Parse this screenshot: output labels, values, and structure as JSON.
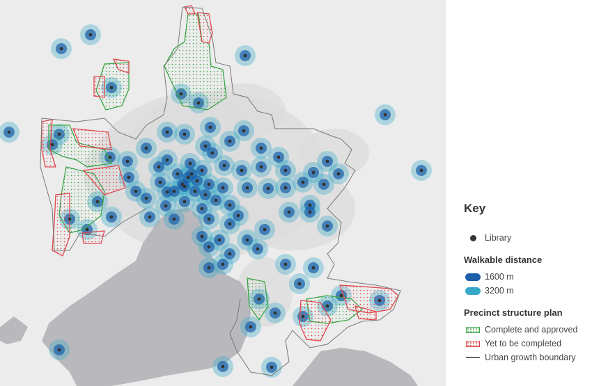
{
  "legend": {
    "key_title": "Key",
    "library_label": "Library",
    "walkable_title": "Walkable distance",
    "d1600_label": "1600 m",
    "d3200_label": "3200 m",
    "precinct_title": "Precinct structure plan",
    "complete_label": "Complete and approved",
    "yet_label": "Yet to be completed",
    "ugb_label": "Urban growth boundary"
  },
  "colors": {
    "land": "#ececec",
    "urban": "#dcdcdc",
    "water": "#b9b9bd",
    "walk_1600": "#1a5ea8",
    "walk_3200": "#36a9c9",
    "complete": "#3aa547",
    "yet": "#e0474c",
    "library": "#333333",
    "ugb": "#777777"
  },
  "map_data": {
    "libraries": [
      [
        130,
        50
      ],
      [
        88,
        70
      ],
      [
        352,
        80
      ],
      [
        160,
        126
      ],
      [
        553,
        165
      ],
      [
        605,
        245
      ],
      [
        13,
        190
      ],
      [
        85,
        193
      ],
      [
        75,
        208
      ],
      [
        158,
        226
      ],
      [
        183,
        232
      ],
      [
        210,
        213
      ],
      [
        240,
        190
      ],
      [
        265,
        193
      ],
      [
        302,
        183
      ],
      [
        330,
        203
      ],
      [
        350,
        188
      ],
      [
        375,
        213
      ],
      [
        400,
        226
      ],
      [
        185,
        255
      ],
      [
        228,
        240
      ],
      [
        255,
        250
      ],
      [
        273,
        235
      ],
      [
        295,
        210
      ],
      [
        322,
        238
      ],
      [
        347,
        245
      ],
      [
        375,
        240
      ],
      [
        410,
        245
      ],
      [
        450,
        248
      ],
      [
        470,
        232
      ],
      [
        486,
        250
      ],
      [
        210,
        285
      ],
      [
        240,
        276
      ],
      [
        265,
        268
      ],
      [
        280,
        275
      ],
      [
        290,
        300
      ],
      [
        310,
        288
      ],
      [
        330,
        295
      ],
      [
        355,
        270
      ],
      [
        385,
        271
      ],
      [
        410,
        270
      ],
      [
        435,
        262
      ],
      [
        465,
        265
      ],
      [
        125,
        330
      ],
      [
        100,
        315
      ],
      [
        160,
        312
      ],
      [
        215,
        312
      ],
      [
        238,
        296
      ],
      [
        250,
        315
      ],
      [
        330,
        322
      ],
      [
        355,
        345
      ],
      [
        380,
        330
      ],
      [
        415,
        305
      ],
      [
        445,
        305
      ],
      [
        470,
        325
      ],
      [
        445,
        295
      ],
      [
        300,
        315
      ],
      [
        290,
        340
      ],
      [
        315,
        345
      ],
      [
        330,
        365
      ],
      [
        370,
        358
      ],
      [
        300,
        355
      ],
      [
        320,
        380
      ],
      [
        410,
        380
      ],
      [
        450,
        385
      ],
      [
        430,
        408
      ],
      [
        435,
        455
      ],
      [
        470,
        440
      ],
      [
        395,
        450
      ],
      [
        372,
        430
      ],
      [
        360,
        470
      ],
      [
        260,
        135
      ],
      [
        285,
        148
      ],
      [
        240,
        230
      ],
      [
        270,
        255
      ],
      [
        262,
        265
      ],
      [
        275,
        250
      ],
      [
        283,
        260
      ],
      [
        290,
        245
      ],
      [
        300,
        265
      ],
      [
        295,
        280
      ],
      [
        250,
        275
      ],
      [
        230,
        262
      ],
      [
        140,
        290
      ],
      [
        545,
        432
      ],
      [
        490,
        425
      ],
      [
        85,
        503
      ],
      [
        320,
        527
      ],
      [
        390,
        528
      ],
      [
        305,
        220
      ],
      [
        342,
        310
      ],
      [
        265,
        290
      ],
      [
        320,
        270
      ],
      [
        195,
        275
      ],
      [
        300,
        385
      ]
    ],
    "complete_plans": [
      "M270,20 L285,20 L290,60 L300,62 L303,95 L320,100 L325,140 L298,158 L262,152 L245,115 L236,95 L250,70 L265,60 Z",
      "M150,92 L185,90 L185,128 L175,152 L152,158 L138,130 Z",
      "M70,180 L100,180 L110,205 L150,215 L160,235 L125,240 L110,230 L90,225 L70,215 Z",
      "M95,240 L135,250 L150,275 L145,310 L120,330 L100,335 L85,310 L88,280 Z",
      "M440,430 L470,425 L505,430 L520,445 L500,460 L470,465 L445,462 Z",
      "M355,400 L380,405 L385,440 L372,460 L358,440 Z"
    ],
    "yet_plans": [
      "M265,10 L275,8 L280,20 L270,20 Z",
      "M283,18 L300,20 L305,48 L300,62 L290,60 Z",
      "M163,85 L185,88 L185,105 L170,100 Z",
      "M135,110 L150,110 L150,140 L135,138 Z",
      "M60,175 L75,172 L72,215 L80,240 L65,240 L60,215 Z",
      "M105,185 L155,190 L160,215 L115,210 Z",
      "M120,245 L170,238 L180,270 L150,280 Z",
      "M80,280 L100,278 L100,340 L90,368 L75,360 L78,320 Z",
      "M118,335 L150,332 L145,350 L120,350 Z",
      "M432,432 L460,435 L475,460 L460,490 L440,488 L430,465 Z",
      "M488,410 L520,412 L560,415 L572,425 L560,445 L530,450 L500,445 Z",
      "M510,440 L540,448 L540,460 L515,458 Z"
    ],
    "ugb": [
      "M262,10 L290,12 L305,55 L310,90 L330,95 L335,135 L355,140 L370,160 L390,165 L395,185 L450,185 L475,195 L490,200 L505,215 L495,235 L510,245 L495,270 L470,300 L490,320 L485,350 L470,365 L480,380 L470,400 L500,405 L540,410 L575,418 L565,445 L545,460 L520,462 L500,470 L470,495 L445,500 L420,475 L410,490 L415,520 L390,540 L360,535 L340,505 L330,480 L340,460 L345,430",
      "M60,170 L110,175 L150,170 L170,190 L195,200 L210,180 L235,165 L240,140 L235,95 L255,70 L262,10",
      "M60,170 L58,240 L75,300 L78,360 L100,360 L115,335 L150,340 L175,320 L210,300"
    ],
    "lakes": [
      "M225,320 L240,305 L270,298 L290,315 L295,350 L305,370 L325,395 L345,405 L355,420 L360,450 L355,480 L345,505 L325,520 L300,530 L270,535 L240,540 L200,548 L160,555 L110,555 L100,535 L80,515 L60,490 L70,465 L100,440 L130,420 L165,395 L195,375 L205,350 Z",
      "M440,530 L460,505 L490,500 L525,505 L560,520 L590,540 L600,555 L420,555 Z",
      "M0,470 L20,455 L40,470 L30,490 L10,495 L0,490 Z"
    ]
  }
}
